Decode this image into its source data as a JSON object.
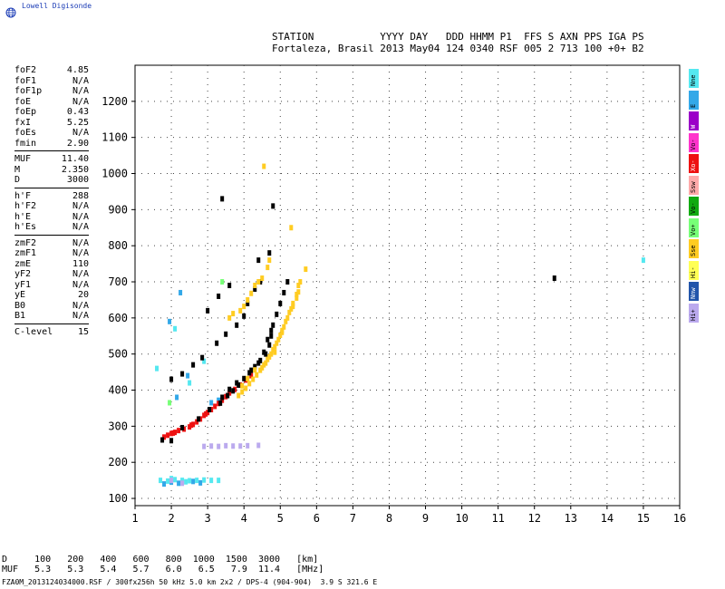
{
  "brand": {
    "name": "Lowell Digisonde",
    "logo_icon": "globe-icon"
  },
  "header": {
    "line1": "STATION           YYYY DAY   DDD HHMM P1  FFS S AXN PPS IGA PS",
    "line2": "Fortaleza, Brasil 2013 May04 124 0340 RSF 005 2 713 100 +0+ B2"
  },
  "params": {
    "group1": [
      {
        "label": "foF2",
        "value": "4.85"
      },
      {
        "label": "foF1",
        "value": "N/A"
      },
      {
        "label": "foF1p",
        "value": "N/A"
      },
      {
        "label": "foE",
        "value": "N/A"
      },
      {
        "label": "foEp",
        "value": "0.43"
      },
      {
        "label": "fxI",
        "value": "5.25"
      },
      {
        "label": "foEs",
        "value": "N/A"
      },
      {
        "label": "fmin",
        "value": "2.90"
      }
    ],
    "group2": [
      {
        "label": "MUF",
        "value": "11.40"
      },
      {
        "label": "M",
        "value": "2.350"
      },
      {
        "label": "D",
        "value": "3000"
      }
    ],
    "group3": [
      {
        "label": "h'F",
        "value": "288"
      },
      {
        "label": "h'F2",
        "value": "N/A"
      },
      {
        "label": "h'E",
        "value": "N/A"
      },
      {
        "label": "h'Es",
        "value": "N/A"
      }
    ],
    "group4": [
      {
        "label": "zmF2",
        "value": "N/A"
      },
      {
        "label": "zmF1",
        "value": "N/A"
      },
      {
        "label": "zmE",
        "value": "110"
      },
      {
        "label": "yF2",
        "value": "N/A"
      },
      {
        "label": "yF1",
        "value": "N/A"
      },
      {
        "label": "yE",
        "value": "20"
      },
      {
        "label": "B0",
        "value": "N/A"
      },
      {
        "label": "B1",
        "value": "N/A"
      }
    ],
    "group5": [
      {
        "label": "C-level",
        "value": "15"
      }
    ]
  },
  "legend": [
    {
      "label": "Nne",
      "color": "#55e8f0"
    },
    {
      "label": "E",
      "color": "#33a8e8"
    },
    {
      "label": "W",
      "color": "#9b00c8"
    },
    {
      "label": "Vo-",
      "color": "#ff33cc"
    },
    {
      "label": "Xo-",
      "color": "#ee1111"
    },
    {
      "label": "Ssw",
      "color": "#ffaaaa"
    },
    {
      "label": "Vo-",
      "color": "#11aa11"
    },
    {
      "label": "Vo+",
      "color": "#77ff77"
    },
    {
      "label": "Sse",
      "color": "#ffcc22"
    },
    {
      "label": "Hi-",
      "color": "#ffff55"
    },
    {
      "label": "Nnw",
      "color": "#2255aa"
    },
    {
      "label": "Hi+",
      "color": "#bbaaee"
    }
  ],
  "muf_table": {
    "line1": "D     100   200   400   600   800  1000  1500  3000   [km]",
    "line2": "MUF   5.3   5.3   5.4   5.7   6.0   6.5   7.9  11.4   [MHz]"
  },
  "footer": "FZA0M_2013124034000.RSF / 300fx256h 50 kHz 5.0 km 2x2 / DPS-4 (904-904)  3.9 S 321.6 E",
  "chart_data": {
    "type": "scatter",
    "title": "",
    "xlabel": "",
    "ylabel": "",
    "xlim": [
      1,
      16
    ],
    "ylim": [
      80,
      1300
    ],
    "x_ticks": [
      1,
      2,
      3,
      4,
      5,
      6,
      7,
      8,
      9,
      10,
      11,
      12,
      13,
      14,
      15,
      16
    ],
    "y_ticks": [
      100,
      200,
      300,
      400,
      500,
      600,
      700,
      800,
      900,
      1000,
      1100,
      1200
    ],
    "grid": true,
    "series": [
      {
        "name": "Nne",
        "color": "#55e8f0",
        "points": [
          [
            1.7,
            150
          ],
          [
            1.9,
            148
          ],
          [
            2.1,
            152
          ],
          [
            2.3,
            150
          ],
          [
            2.5,
            149
          ],
          [
            2.7,
            150
          ],
          [
            2.9,
            151
          ],
          [
            3.1,
            150
          ],
          [
            3.3,
            150
          ],
          [
            2.0,
            155
          ],
          [
            2.4,
            146
          ],
          [
            1.6,
            460
          ],
          [
            2.1,
            570
          ],
          [
            2.5,
            420
          ],
          [
            2.9,
            480
          ],
          [
            15.0,
            760
          ]
        ]
      },
      {
        "name": "E",
        "color": "#33a8e8",
        "points": [
          [
            1.8,
            140
          ],
          [
            2.0,
            145
          ],
          [
            2.2,
            142
          ],
          [
            2.6,
            147
          ],
          [
            2.8,
            143
          ],
          [
            2.15,
            380
          ],
          [
            2.45,
            440
          ],
          [
            1.95,
            590
          ],
          [
            2.25,
            670
          ],
          [
            3.1,
            365
          ],
          [
            3.3,
            372
          ]
        ]
      },
      {
        "name": "Xo-",
        "color": "#ee1111",
        "points": [
          [
            1.8,
            270
          ],
          [
            1.9,
            275
          ],
          [
            2.0,
            280
          ],
          [
            2.1,
            283
          ],
          [
            2.2,
            288
          ],
          [
            2.35,
            292
          ],
          [
            2.5,
            298
          ],
          [
            2.6,
            305
          ],
          [
            2.7,
            312
          ],
          [
            2.8,
            320
          ],
          [
            2.9,
            330
          ],
          [
            3.0,
            338
          ],
          [
            3.1,
            346
          ],
          [
            3.2,
            355
          ],
          [
            3.3,
            363
          ],
          [
            3.4,
            372
          ],
          [
            3.5,
            382
          ],
          [
            3.6,
            392
          ],
          [
            3.75,
            402
          ],
          [
            3.9,
            414
          ],
          [
            4.05,
            428
          ],
          [
            4.2,
            440
          ],
          [
            2.05,
            281
          ],
          [
            2.55,
            303
          ],
          [
            2.95,
            334
          ]
        ]
      },
      {
        "name": "black",
        "color": "#000000",
        "points": [
          [
            1.75,
            262
          ],
          [
            2.3,
            296
          ],
          [
            2.75,
            320
          ],
          [
            3.05,
            346
          ],
          [
            3.35,
            364
          ],
          [
            3.55,
            385
          ],
          [
            3.7,
            398
          ],
          [
            3.85,
            414
          ],
          [
            4.0,
            432
          ],
          [
            4.15,
            448
          ],
          [
            4.3,
            465
          ],
          [
            4.45,
            482
          ],
          [
            4.6,
            500
          ],
          [
            4.7,
            525
          ],
          [
            4.75,
            550
          ],
          [
            4.8,
            580
          ],
          [
            4.9,
            610
          ],
          [
            5.0,
            640
          ],
          [
            5.1,
            670
          ],
          [
            5.2,
            700
          ],
          [
            3.4,
            380
          ],
          [
            3.6,
            402
          ],
          [
            3.8,
            420
          ],
          [
            4.2,
            455
          ],
          [
            4.4,
            475
          ],
          [
            4.55,
            505
          ],
          [
            4.65,
            540
          ],
          [
            4.75,
            565
          ],
          [
            2.0,
            430
          ],
          [
            2.3,
            445
          ],
          [
            2.6,
            470
          ],
          [
            2.85,
            490
          ],
          [
            3.25,
            530
          ],
          [
            3.5,
            555
          ],
          [
            3.8,
            580
          ],
          [
            4.0,
            605
          ],
          [
            4.1,
            640
          ],
          [
            4.3,
            680
          ],
          [
            4.45,
            700
          ],
          [
            3.0,
            620
          ],
          [
            3.3,
            660
          ],
          [
            3.6,
            690
          ],
          [
            4.4,
            760
          ],
          [
            4.7,
            780
          ],
          [
            3.4,
            930
          ],
          [
            4.8,
            910
          ],
          [
            12.55,
            710
          ],
          [
            2.0,
            260
          ]
        ]
      },
      {
        "name": "Sse",
        "color": "#ffcc22",
        "points": [
          [
            3.85,
            385
          ],
          [
            3.95,
            395
          ],
          [
            4.05,
            405
          ],
          [
            4.15,
            418
          ],
          [
            4.25,
            430
          ],
          [
            4.35,
            442
          ],
          [
            4.45,
            455
          ],
          [
            4.55,
            470
          ],
          [
            4.65,
            485
          ],
          [
            4.75,
            500
          ],
          [
            4.85,
            520
          ],
          [
            4.95,
            540
          ],
          [
            5.05,
            565
          ],
          [
            5.15,
            590
          ],
          [
            5.25,
            615
          ],
          [
            5.35,
            640
          ],
          [
            5.45,
            665
          ],
          [
            5.5,
            690
          ],
          [
            4.5,
            462
          ],
          [
            4.7,
            492
          ],
          [
            4.9,
            530
          ],
          [
            5.1,
            575
          ],
          [
            5.3,
            625
          ],
          [
            5.45,
            655
          ],
          [
            3.9,
            620
          ],
          [
            4.1,
            650
          ],
          [
            4.3,
            690
          ],
          [
            4.5,
            710
          ],
          [
            4.65,
            740
          ],
          [
            4.7,
            760
          ],
          [
            4.55,
            1020
          ],
          [
            5.3,
            850
          ],
          [
            5.7,
            735
          ],
          [
            3.6,
            600
          ],
          [
            3.7,
            612
          ],
          [
            4.0,
            632
          ],
          [
            4.2,
            668
          ],
          [
            4.4,
            700
          ],
          [
            4.85,
            505
          ],
          [
            5.0,
            552
          ],
          [
            5.2,
            600
          ],
          [
            5.35,
            632
          ],
          [
            5.5,
            672
          ],
          [
            5.55,
            700
          ],
          [
            4.6,
            475
          ],
          [
            4.8,
            512
          ],
          [
            5.05,
            560
          ],
          [
            3.95,
            412
          ],
          [
            4.1,
            432
          ],
          [
            4.3,
            456
          ]
        ]
      },
      {
        "name": "Hi+",
        "color": "#bbaaee",
        "points": [
          [
            2.9,
            244
          ],
          [
            3.1,
            245
          ],
          [
            3.3,
            244
          ],
          [
            3.5,
            246
          ],
          [
            3.7,
            245
          ],
          [
            3.9,
            245
          ],
          [
            4.1,
            246
          ],
          [
            4.4,
            247
          ],
          [
            2.0,
            150
          ],
          [
            2.3,
            142
          ]
        ]
      },
      {
        "name": "Vo+",
        "color": "#77ff77",
        "points": [
          [
            1.95,
            365
          ],
          [
            3.4,
            700
          ]
        ]
      }
    ]
  }
}
